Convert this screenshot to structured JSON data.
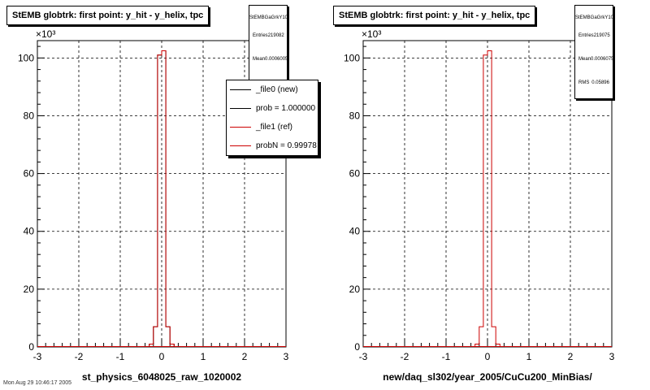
{
  "chart_data": [
    {
      "type": "histogram",
      "title": "StEMB globtrk: first point: y_hit - y_helix, tpc",
      "xlabel": "st_physics_6048025_raw_1020002",
      "ylabel": "",
      "y_multiplier": "×10³",
      "xlim": [
        -3,
        3
      ],
      "ylim": [
        0,
        106
      ],
      "xticks": [
        -3,
        -2,
        -1,
        0,
        1,
        2,
        3
      ],
      "yticks": [
        0,
        20,
        40,
        60,
        80,
        100
      ],
      "grid": true,
      "stats": {
        "name": "StEMBGaGrkY10",
        "rows": [
          {
            "label": "Entries",
            "value": "219082"
          },
          {
            "label": "Mean",
            "value": "0.0006005"
          }
        ]
      },
      "legend": {
        "placement": "top-right",
        "entries": [
          {
            "label": "_file0 (new)",
            "color": "#000000"
          },
          {
            "label": "prob = 1.000000",
            "color": "#000000"
          },
          {
            "label": "_file1 (ref)",
            "color": "#cc0000"
          },
          {
            "label": "probN = 0.99978",
            "color": "#cc0000"
          }
        ]
      },
      "series": [
        {
          "name": "_file0 (new)",
          "color": "#000000",
          "bins": [
            [
              -0.3,
              -0.2,
              1.0
            ],
            [
              -0.2,
              -0.1,
              7.0
            ],
            [
              -0.1,
              0.0,
              101.0
            ],
            [
              0.0,
              0.1,
              102.5
            ],
            [
              0.1,
              0.2,
              7.0
            ],
            [
              0.2,
              0.3,
              1.0
            ]
          ]
        },
        {
          "name": "_file1 (ref)",
          "color": "#cc0000",
          "bins": [
            [
              -0.3,
              -0.2,
              1.0
            ],
            [
              -0.2,
              -0.1,
              7.0
            ],
            [
              -0.1,
              0.0,
              101.0
            ],
            [
              0.0,
              0.1,
              102.5
            ],
            [
              0.1,
              0.2,
              7.0
            ],
            [
              0.2,
              0.3,
              1.0
            ]
          ]
        }
      ]
    },
    {
      "type": "histogram",
      "title": "StEMB globtrk: first point: y_hit - y_helix, tpc",
      "xlabel": "new/daq_sl302/year_2005/CuCu200_MinBias/",
      "ylabel": "",
      "y_multiplier": "×10³",
      "xlim": [
        -3,
        3
      ],
      "ylim": [
        0,
        106
      ],
      "xticks": [
        -3,
        -2,
        -1,
        0,
        1,
        2,
        3
      ],
      "yticks": [
        0,
        20,
        40,
        60,
        80,
        100
      ],
      "grid": true,
      "stats": {
        "name": "StEMBGaGrkY10",
        "rows": [
          {
            "label": "Entries",
            "value": "219075"
          },
          {
            "label": "Mean",
            "value": "0.0006075"
          },
          {
            "label": "RMS",
            "value": "0.05896"
          }
        ]
      },
      "series": [
        {
          "name": "",
          "color": "#cc0000",
          "bins": [
            [
              -0.3,
              -0.2,
              1.0
            ],
            [
              -0.2,
              -0.1,
              7.0
            ],
            [
              -0.1,
              0.0,
              101.0
            ],
            [
              0.0,
              0.1,
              102.5
            ],
            [
              0.1,
              0.2,
              7.0
            ],
            [
              0.2,
              0.3,
              1.0
            ]
          ]
        }
      ]
    }
  ],
  "footer": "Mon Aug 29 10:46:17 2005"
}
